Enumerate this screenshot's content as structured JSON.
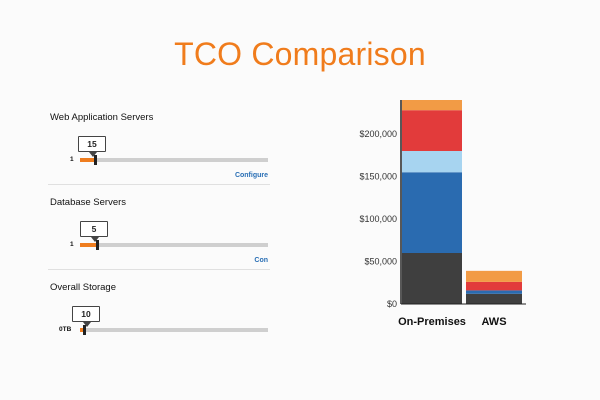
{
  "title": "TCO Comparison",
  "sections": [
    {
      "label": "Web Application Servers",
      "value": "15",
      "min": "1",
      "link": "Configure"
    },
    {
      "label": "Database Servers",
      "value": "5",
      "min": "1",
      "link": "Con"
    },
    {
      "label": "Overall Storage",
      "value": "10",
      "min": "0TB",
      "link": ""
    }
  ],
  "sliders": [
    {
      "fraction": 0.08
    },
    {
      "fraction": 0.09
    },
    {
      "fraction": 0.02
    }
  ],
  "colors": {
    "accent": "#f07c1c",
    "slider_fill": "#ef7d1f",
    "link": "#2a6fb5"
  },
  "chart_data": {
    "type": "bar",
    "stacked": true,
    "categories": [
      "On-Premises",
      "AWS"
    ],
    "series": [
      {
        "color": "#3f3f3f",
        "values": [
          60000,
          12000
        ]
      },
      {
        "color": "#2a6bb0",
        "values": [
          95000,
          4000
        ]
      },
      {
        "color": "#a7d4f0",
        "values": [
          25000,
          0
        ]
      },
      {
        "color": "#e23b3b",
        "values": [
          48000,
          10000
        ]
      },
      {
        "color": "#f29b45",
        "values": [
          12000,
          13000
        ]
      }
    ],
    "y_ticks": [
      {
        "value": 0,
        "label": "$0"
      },
      {
        "value": 50000,
        "label": "$50,000"
      },
      {
        "value": 100000,
        "label": "$100,000"
      },
      {
        "value": 150000,
        "label": "$150,000"
      },
      {
        "value": 200000,
        "label": "$200,000"
      }
    ],
    "ylim": [
      0,
      240000
    ],
    "grid": false,
    "legend": "none"
  }
}
